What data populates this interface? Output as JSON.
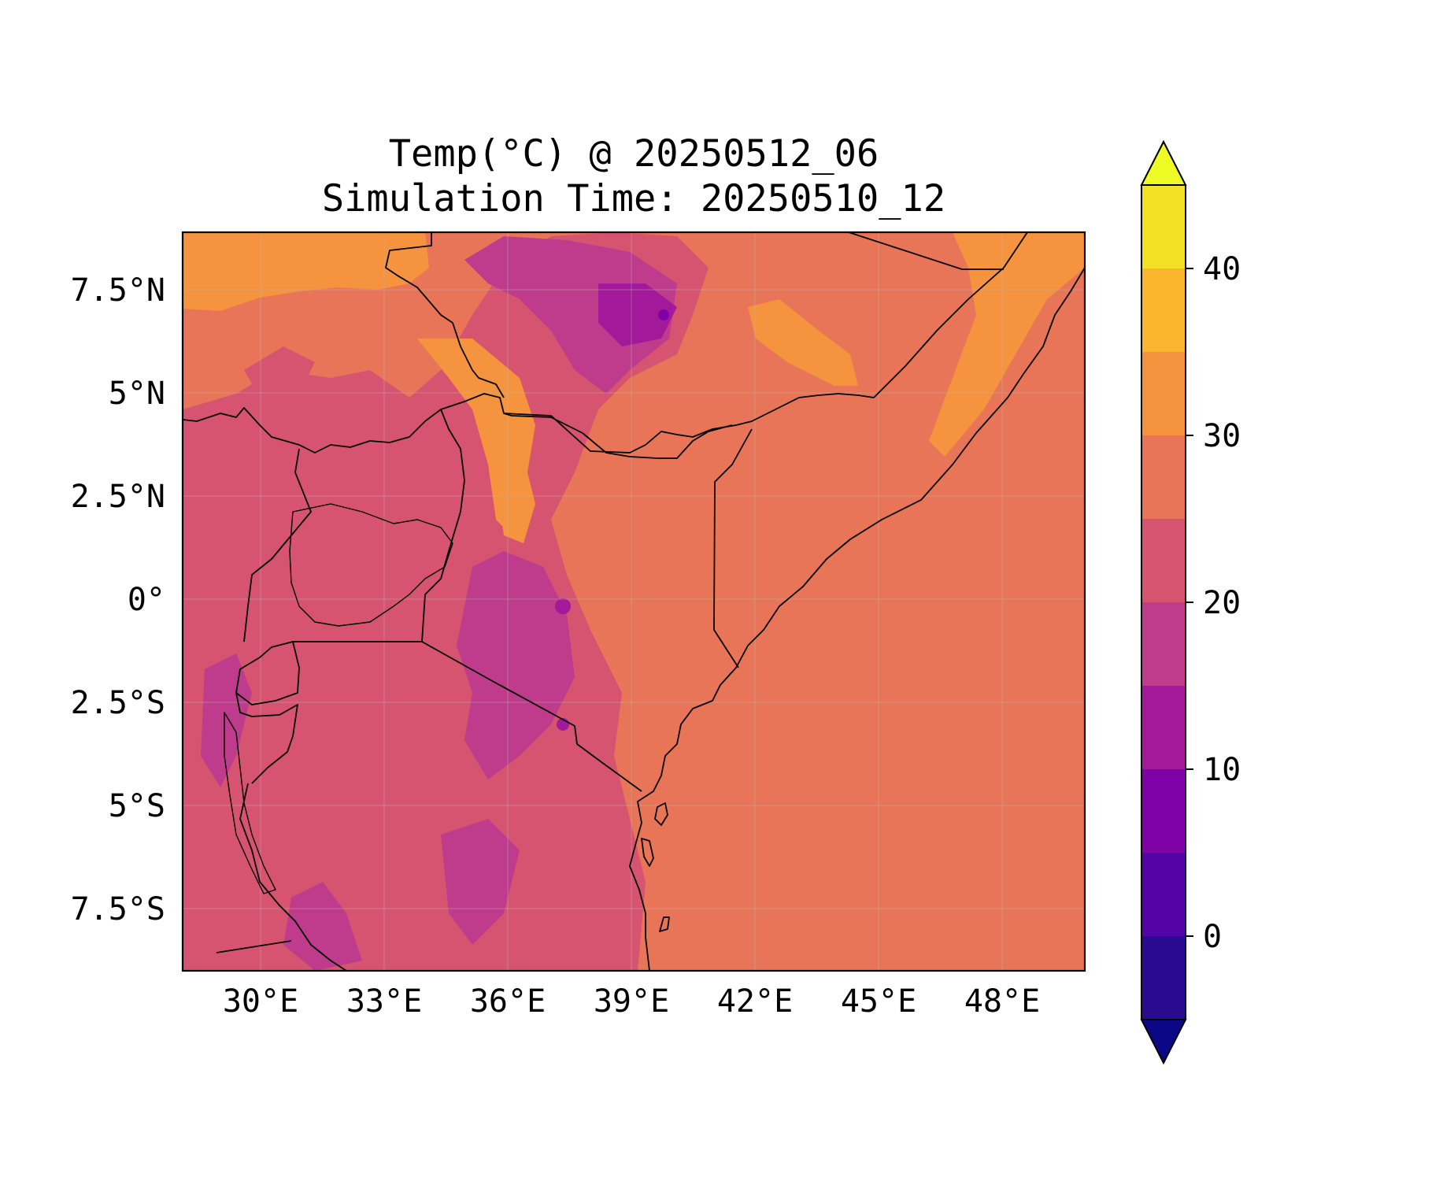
{
  "title": {
    "line1": "Temp(°C) @ 20250512_06",
    "line2": "Simulation Time: 20250510_12"
  },
  "map": {
    "lon_range": [
      27.2,
      49.8
    ],
    "lat_range": [
      -9.0,
      8.9
    ],
    "x_ticks": [
      "30°E",
      "33°E",
      "36°E",
      "39°E",
      "42°E",
      "45°E",
      "48°E"
    ],
    "x_tick_values": [
      30,
      33,
      36,
      39,
      42,
      45,
      48
    ],
    "y_ticks": [
      "7.5°N",
      "5°N",
      "2.5°N",
      "0°",
      "2.5°S",
      "5°S",
      "7.5°S"
    ],
    "y_tick_values": [
      7.5,
      5,
      2.5,
      0,
      -2.5,
      -5,
      -7.5
    ],
    "gridlines": true,
    "background_field_color": "#e97558",
    "borders": "country boundaries and coastline in black"
  },
  "colorbar": {
    "ticks": [
      "0",
      "10",
      "20",
      "30",
      "40"
    ],
    "tick_values": [
      0,
      10,
      20,
      30,
      40
    ],
    "range": [
      -5,
      45
    ],
    "extend": "both",
    "levels": [
      {
        "from": -5,
        "to": 0,
        "color": "#2a0a8f"
      },
      {
        "from": 0,
        "to": 5,
        "color": "#5303a6"
      },
      {
        "from": 5,
        "to": 10,
        "color": "#7f02a7"
      },
      {
        "from": 10,
        "to": 15,
        "color": "#a2199a"
      },
      {
        "from": 15,
        "to": 20,
        "color": "#bf3b8c"
      },
      {
        "from": 20,
        "to": 25,
        "color": "#d6546f"
      },
      {
        "from": 25,
        "to": 30,
        "color": "#e97558"
      },
      {
        "from": 30,
        "to": 35,
        "color": "#f5933e"
      },
      {
        "from": 35,
        "to": 40,
        "color": "#fbb52e"
      },
      {
        "from": 40,
        "to": 45,
        "color": "#f4e125"
      }
    ],
    "under_color": "#0c0786",
    "over_color": "#eefb24"
  }
}
